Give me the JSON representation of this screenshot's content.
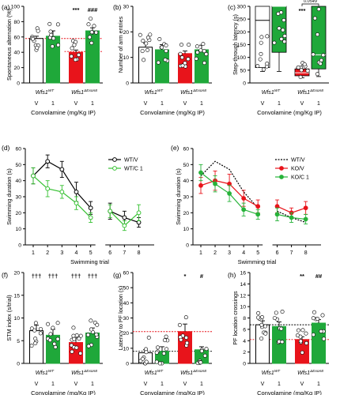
{
  "colors": {
    "wt": "#ffffff",
    "ko_v": "#e8141b",
    "ko_c": "#1fa83a",
    "wt_c_line": "#36c132",
    "ko_line": "#e8141b",
    "kc_line": "#27b33a"
  },
  "chart_data": [
    {
      "panel": "(a)",
      "type": "bar",
      "ylabel": "Spontaneous alternation (%)",
      "ylim": [
        0,
        100
      ],
      "yticks": [
        0,
        20,
        40,
        60,
        80,
        100
      ],
      "xlabel": "Convolamine (mg/Kg IP)",
      "groups": [
        "Wfs1WT",
        "Wfs1ΔExon8"
      ],
      "group_labels": [
        {
          "base": "Wfs1",
          "sup": "WT"
        },
        {
          "base": "Wfs1",
          "sup": "ΔExon8"
        }
      ],
      "categories": [
        "V",
        "1",
        "V",
        "1"
      ],
      "values": [
        58,
        61,
        40,
        68
      ],
      "errors": [
        3,
        7,
        3,
        4
      ],
      "colors": [
        "#ffffff",
        "#1fa83a",
        "#e8141b",
        "#1fa83a"
      ],
      "reference_lines": [
        {
          "y": 58,
          "span": "WT"
        },
        {
          "y": 41,
          "span": "KO"
        }
      ],
      "annotations": [
        {
          "text": "***",
          "bar": 2
        },
        {
          "text": "###",
          "bar": 3
        }
      ]
    },
    {
      "panel": "(b)",
      "type": "bar",
      "ylabel": "Number of arm entries",
      "ylim": [
        0,
        30
      ],
      "yticks": [
        0,
        10,
        20,
        30
      ],
      "xlabel": "Convolamine (mg/Kg IP)",
      "group_labels": [
        {
          "base": "Wfs1",
          "sup": "WT"
        },
        {
          "base": "Wfs1",
          "sup": "ΔExon8"
        }
      ],
      "categories": [
        "V",
        "1",
        "V",
        "1"
      ],
      "values": [
        14,
        13,
        11.5,
        13
      ],
      "errors": [
        1.5,
        2,
        1,
        1.8
      ],
      "colors": [
        "#ffffff",
        "#1fa83a",
        "#e8141b",
        "#1fa83a"
      ]
    },
    {
      "panel": "(c)",
      "type": "boxplot",
      "ylabel": "Step-through latency (s)",
      "ylim": [
        0,
        300
      ],
      "yticks": [
        0,
        50,
        100,
        150,
        200,
        250,
        300
      ],
      "xlabel": "Convolamine (mg/Kg IP)",
      "group_labels": [
        {
          "base": "Wfs1",
          "sup": "WT"
        },
        {
          "base": "Wfs1",
          "sup": "ΔExon8"
        }
      ],
      "categories": [
        "V",
        "1",
        "V",
        "1"
      ],
      "boxes": [
        {
          "min": 45,
          "q1": 60,
          "median": 245,
          "q3": 300,
          "max": 300
        },
        {
          "min": 45,
          "q1": 120,
          "median": 300,
          "q3": 300,
          "max": 300
        },
        {
          "min": 20,
          "q1": 28,
          "median": 40,
          "q3": 55,
          "max": 80
        },
        {
          "min": 25,
          "q1": 55,
          "median": 110,
          "q3": 300,
          "max": 300
        }
      ],
      "colors": [
        "#ffffff",
        "#1fa83a",
        "#e8141b",
        "#1fa83a"
      ],
      "annotations": [
        {
          "text": "***",
          "bar": 2
        },
        {
          "text": "0.0549",
          "between": [
            2,
            3
          ]
        }
      ]
    },
    {
      "panel": "(d)",
      "type": "line",
      "ylabel": "Swimming duration (s)",
      "xlabel": "Swimming trial",
      "ylim": [
        0,
        60
      ],
      "yticks": [
        0,
        10,
        20,
        30,
        40,
        50,
        60
      ],
      "xticks": [
        1,
        2,
        3,
        4,
        5,
        6,
        7,
        8
      ],
      "series": [
        {
          "name": "WT/V",
          "segments": [
            {
              "x": [
                1,
                2,
                3,
                4,
                5
              ],
              "y": [
                43,
                52,
                47,
                33,
                23
              ]
            },
            {
              "x": [
                6,
                7,
                8
              ],
              "y": [
                21,
                17,
                14
              ]
            }
          ],
          "errors": [
            5,
            4,
            5,
            6,
            4,
            5,
            4,
            3
          ]
        },
        {
          "name": "WT/C 1",
          "segments": [
            {
              "x": [
                1,
                2,
                3,
                4,
                5
              ],
              "y": [
                43,
                35,
                33,
                26,
                17
              ]
            },
            {
              "x": [
                6,
                7,
                8
              ],
              "y": [
                21,
                12,
                20
              ]
            }
          ],
          "errors": [
            5,
            5,
            4,
            4,
            3,
            4,
            3,
            5
          ]
        }
      ]
    },
    {
      "panel": "(e)",
      "type": "line",
      "ylabel": "Swimming duration (s)",
      "xlabel": "Swimming trial",
      "ylim": [
        0,
        60
      ],
      "yticks": [
        0,
        10,
        20,
        30,
        40,
        50,
        60
      ],
      "xticks": [
        1,
        2,
        3,
        4,
        5,
        6,
        7,
        8
      ],
      "series": [
        {
          "name": "WT/V",
          "segments": [
            {
              "x": [
                1,
                2,
                3,
                4,
                5
              ],
              "y": [
                43,
                52,
                47,
                33,
                23
              ]
            },
            {
              "x": [
                6,
                7,
                8
              ],
              "y": [
                21,
                17,
                14
              ]
            }
          ]
        },
        {
          "name": "KO/V",
          "segments": [
            {
              "x": [
                1,
                2,
                3,
                4,
                5
              ],
              "y": [
                37,
                40,
                38,
                29,
                24
              ]
            },
            {
              "x": [
                6,
                7,
                8
              ],
              "y": [
                24,
                20,
                23
              ]
            }
          ],
          "errors": [
            5,
            6,
            6,
            5,
            4,
            4,
            3,
            4
          ]
        },
        {
          "name": "KO/C 1",
          "segments": [
            {
              "x": [
                1,
                2,
                3,
                4,
                5
              ],
              "y": [
                45,
                38,
                32,
                22,
                19
              ]
            },
            {
              "x": [
                6,
                7,
                8
              ],
              "y": [
                19,
                17,
                16
              ]
            }
          ],
          "errors": [
            5,
            5,
            5,
            4,
            3,
            4,
            3,
            3
          ]
        }
      ]
    },
    {
      "panel": "(f)",
      "type": "bar",
      "ylabel": "STM index (s/trial)",
      "ylim": [
        0,
        20
      ],
      "yticks": [
        0,
        5,
        10,
        15,
        20
      ],
      "xlabel": "Convolamine (mg/Kg IP)",
      "group_labels": [
        {
          "base": "Wfs1",
          "sup": "WT"
        },
        {
          "base": "Wfs1",
          "sup": "ΔExon8"
        }
      ],
      "categories": [
        "V",
        "1",
        "V",
        "1"
      ],
      "values": [
        7.2,
        6.2,
        4.6,
        6.7
      ],
      "errors": [
        1.2,
        1.3,
        1.0,
        1.1
      ],
      "colors": [
        "#ffffff",
        "#1fa83a",
        "#e8141b",
        "#1fa83a"
      ],
      "annotations": [
        {
          "text": "†††",
          "bar": 0
        },
        {
          "text": "†††",
          "bar": 1
        },
        {
          "text": "†††",
          "bar": 2
        },
        {
          "text": "†††",
          "bar": 3
        }
      ]
    },
    {
      "panel": "(g)",
      "type": "bar",
      "ylabel": "Latency to PF location (s)",
      "ylim": [
        0,
        60
      ],
      "yticks": [
        0,
        10,
        20,
        30,
        40,
        50,
        60
      ],
      "xlabel": "Convolamine (mg/Kg IP)",
      "group_labels": [
        {
          "base": "Wfs1",
          "sup": "WT"
        },
        {
          "base": "Wfs1",
          "sup": "ΔExon8"
        }
      ],
      "categories": [
        "V",
        "1",
        "V",
        "1"
      ],
      "values": [
        7,
        8,
        21,
        9
      ],
      "errors": [
        2,
        3,
        5,
        2
      ],
      "colors": [
        "#ffffff",
        "#1fa83a",
        "#e8141b",
        "#1fa83a"
      ],
      "reference_lines": [
        {
          "y": 21,
          "span": "all"
        },
        {
          "y": 8,
          "span": "all",
          "color": "black"
        }
      ],
      "annotations": [
        {
          "text": "*",
          "bar": 2
        },
        {
          "text": "#",
          "bar": 3
        }
      ]
    },
    {
      "panel": "(h)",
      "type": "bar",
      "ylabel": "PF location crossings",
      "ylim": [
        0,
        16
      ],
      "yticks": [
        0,
        2,
        4,
        6,
        8,
        10,
        12,
        14,
        16
      ],
      "xlabel": "Convolamine (mg/Kg IP)",
      "group_labels": [
        {
          "base": "Wfs1",
          "sup": "WT"
        },
        {
          "base": "Wfs1",
          "sup": "ΔExon8"
        }
      ],
      "categories": [
        "V",
        "1",
        "V",
        "1"
      ],
      "values": [
        6.8,
        6.5,
        4.2,
        7.1
      ],
      "errors": [
        0.7,
        0.8,
        0.5,
        0.6
      ],
      "colors": [
        "#ffffff",
        "#1fa83a",
        "#e8141b",
        "#1fa83a"
      ],
      "reference_lines": [
        {
          "y": 6.8,
          "span": "all",
          "color": "black"
        },
        {
          "y": 4.2,
          "span": "all"
        }
      ],
      "annotations": [
        {
          "text": "**",
          "bar": 2
        },
        {
          "text": "##",
          "bar": 3
        }
      ]
    }
  ]
}
